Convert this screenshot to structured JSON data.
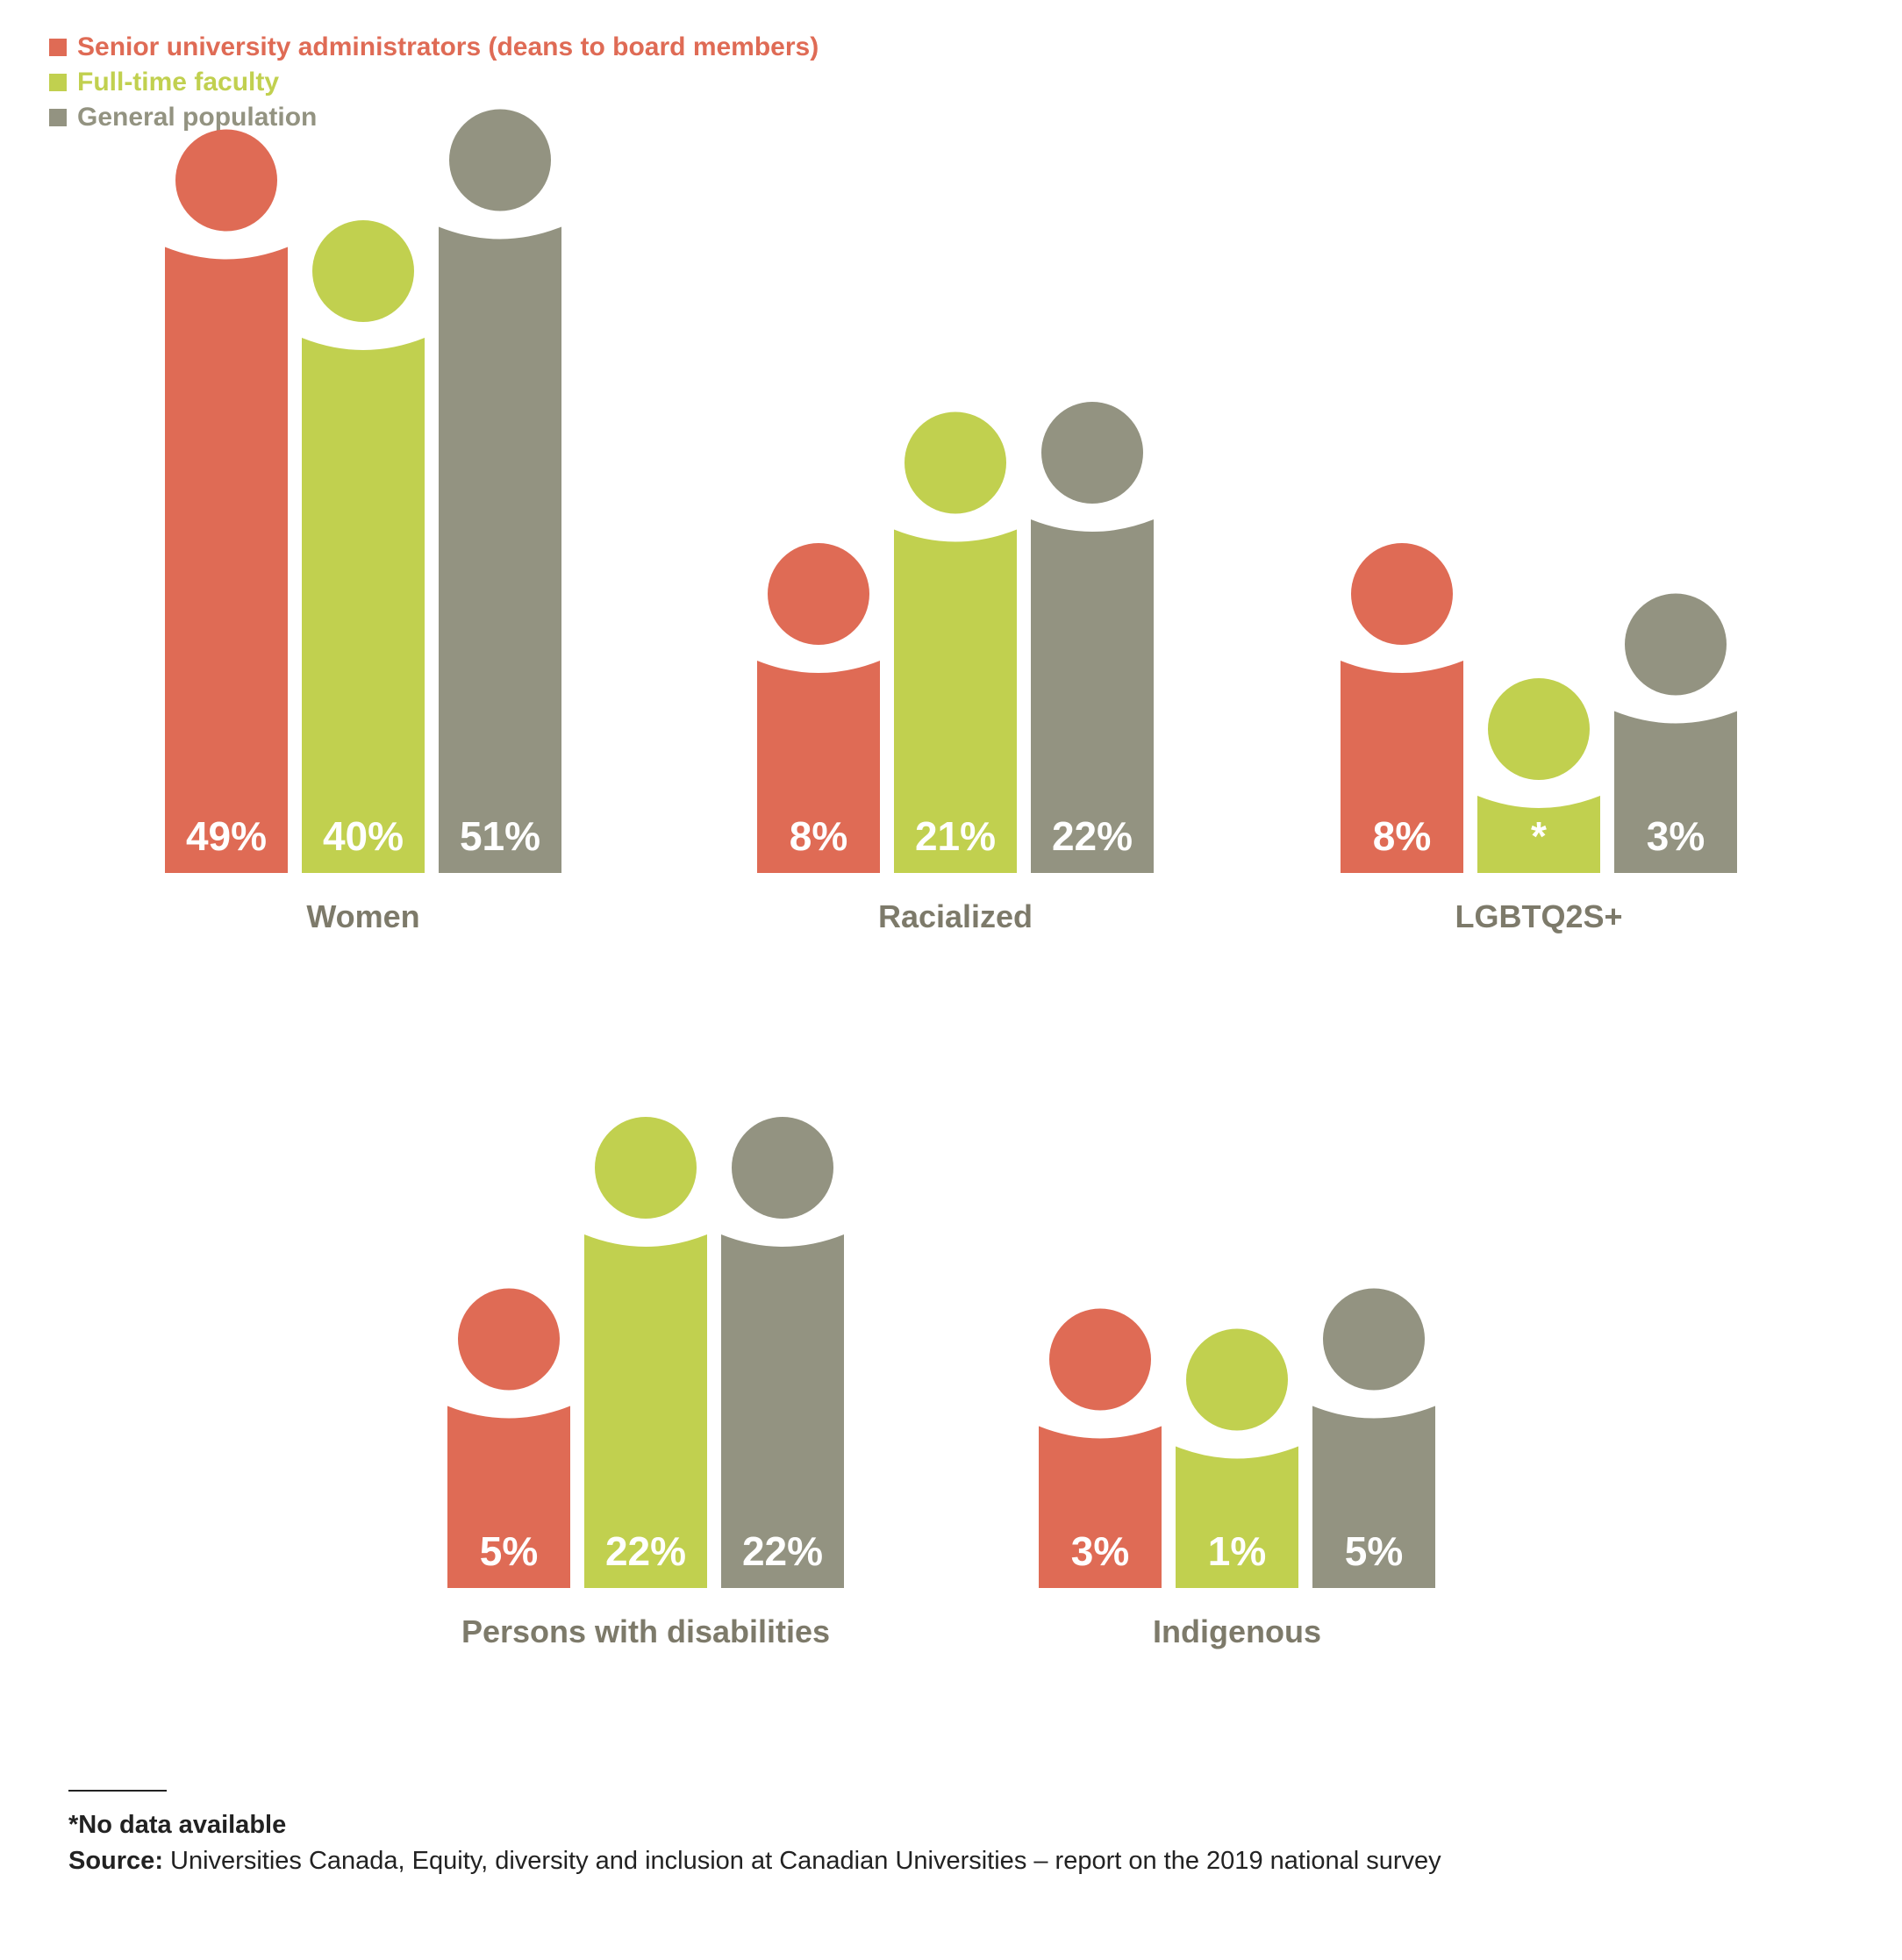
{
  "colors": {
    "admin": "#df6b55",
    "faculty": "#c1d04f",
    "population": "#939381",
    "group_label": "#7d7a6a",
    "value_label": "#ffffff"
  },
  "chart_data": {
    "type": "bar",
    "series": [
      {
        "name": "Senior university administrators (deans to board members)",
        "color_key": "admin"
      },
      {
        "name": "Full-time faculty",
        "color_key": "faculty"
      },
      {
        "name": "General population",
        "color_key": "population"
      }
    ],
    "groups": [
      {
        "label": "Women",
        "values": [
          49,
          40,
          51
        ],
        "value_labels": [
          "49%",
          "40%",
          "51%"
        ]
      },
      {
        "label": "Racialized",
        "values": [
          8,
          21,
          22
        ],
        "value_labels": [
          "8%",
          "21%",
          "22%"
        ]
      },
      {
        "label": "LGBTQ2S+",
        "values": [
          8,
          null,
          3
        ],
        "value_labels": [
          "8%",
          "*",
          "3%"
        ]
      },
      {
        "label": "Persons with disabilities",
        "values": [
          5,
          22,
          22
        ],
        "value_labels": [
          "5%",
          "22%",
          "22%"
        ]
      },
      {
        "label": "Indigenous",
        "values": [
          3,
          1,
          5
        ],
        "value_labels": [
          "3%",
          "1%",
          "5%"
        ]
      }
    ],
    "unit": "%"
  },
  "footnote": "*No data available",
  "source_label": "Source:",
  "source_text": " Universities Canada, Equity, diversity and inclusion at Canadian Universities – report on the 2019 national survey"
}
